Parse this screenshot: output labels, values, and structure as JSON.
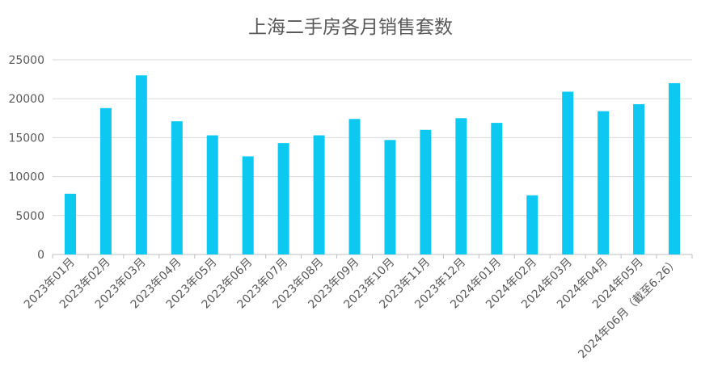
{
  "chart_data": {
    "type": "bar",
    "title": "上海二手房各月销售套数",
    "xlabel": "",
    "ylabel": "",
    "ylim": [
      0,
      25000
    ],
    "yticks": [
      0,
      5000,
      10000,
      15000,
      20000,
      25000
    ],
    "grid": true,
    "legend": "none",
    "bar_color": "#0dc8f0",
    "categories": [
      "2023年01月",
      "2023年02月",
      "2023年03月",
      "2023年04月",
      "2023年05月",
      "2023年06月",
      "2023年07月",
      "2023年08月",
      "2023年09月",
      "2023年10月",
      "2023年11月",
      "2023年12月",
      "2024年01月",
      "2024年02月",
      "2024年03月",
      "2024年04月",
      "2024年05月",
      "2024年06月（截至6.26）"
    ],
    "values": [
      7800,
      18800,
      23000,
      17100,
      15300,
      12600,
      14300,
      15300,
      17400,
      14700,
      16000,
      17500,
      16900,
      7600,
      20900,
      18400,
      19300,
      22000
    ]
  }
}
